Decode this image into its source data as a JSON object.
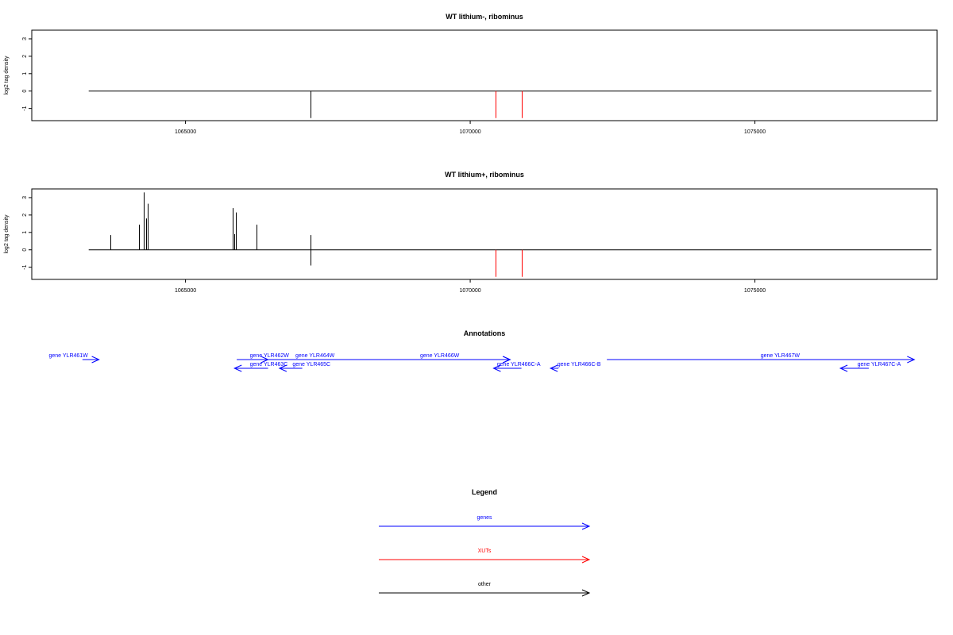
{
  "chart_data": [
    {
      "type": "bar",
      "title": "WT lithium-, ribominus",
      "ylabel": "log2 tag density",
      "xlim": [
        1062300,
        1078200
      ],
      "ylim": [
        -1.7,
        3.5
      ],
      "x_ticks": [
        "1065000",
        "1070000",
        "1075000"
      ],
      "y_ticks": [
        "-1",
        "0",
        "1",
        "2",
        "3"
      ],
      "baseline": {
        "x_start": 1063300,
        "x_end": 1078100,
        "y": 0
      },
      "series": [
        {
          "color": "#000000",
          "points": [
            {
              "x": 1067200,
              "y": -1.55
            }
          ]
        },
        {
          "color": "#ff0000",
          "points": [
            {
              "x": 1070450,
              "y": -1.55
            },
            {
              "x": 1070900,
              "y": -1.55
            }
          ]
        }
      ]
    },
    {
      "type": "bar",
      "title": "WT lithium+, ribominus",
      "ylabel": "log2 tag density",
      "xlim": [
        1062300,
        1078200
      ],
      "ylim": [
        -1.7,
        3.5
      ],
      "x_ticks": [
        "1065000",
        "1070000",
        "1075000"
      ],
      "y_ticks": [
        "-1",
        "0",
        "1",
        "2",
        "3"
      ],
      "baseline": {
        "x_start": 1063300,
        "x_end": 1078100,
        "y": 0
      },
      "series": [
        {
          "color": "#000000",
          "points": [
            {
              "x": 1063680,
              "y": 0.85
            },
            {
              "x": 1064180,
              "y": 1.45
            },
            {
              "x": 1064260,
              "y": 3.3
            },
            {
              "x": 1064310,
              "y": 1.8
            },
            {
              "x": 1064340,
              "y": 2.65
            },
            {
              "x": 1065830,
              "y": 2.4
            },
            {
              "x": 1065850,
              "y": 0.9
            },
            {
              "x": 1065880,
              "y": 2.15
            },
            {
              "x": 1066250,
              "y": 1.45
            },
            {
              "x": 1067200,
              "y": 0.85
            },
            {
              "x": 1067200,
              "y": -0.9
            }
          ]
        },
        {
          "color": "#ff0000",
          "points": [
            {
              "x": 1070450,
              "y": -1.55
            },
            {
              "x": 1070900,
              "y": -1.55
            }
          ]
        }
      ]
    }
  ],
  "annotations": {
    "title": "Annotations",
    "genes": [
      {
        "label": "gene YLR461W",
        "start": 1063190,
        "end": 1063480,
        "row": 0,
        "label_x": 1062600,
        "label_row": 0,
        "color": "#0000ff"
      },
      {
        "label": "gene YLR462W",
        "start": 1065900,
        "end": 1066450,
        "row": 0,
        "label_x": 1066130,
        "label_row": 0,
        "color": "#0000ff"
      },
      {
        "label": "gene YLR464W",
        "start": 1066450,
        "end": 1070700,
        "row": 0,
        "label_x": 1066930,
        "label_row": 0,
        "color": "#0000ff"
      },
      {
        "label": "gene YLR466W",
        "start": 1069500,
        "end": 1070700,
        "row": 0,
        "label_x": 1069120,
        "label_row": 0,
        "color": "#0000ff"
      },
      {
        "label": "gene YLR467W",
        "start": 1072400,
        "end": 1077800,
        "row": 0,
        "label_x": 1075100,
        "label_row": 0,
        "color": "#0000ff"
      },
      {
        "label": "gene YLR463C",
        "start": 1066450,
        "end": 1065860,
        "row": 1,
        "label_x": 1066130,
        "label_row": 1,
        "color": "#0000ff"
      },
      {
        "label": "gene YLR465C",
        "start": 1067050,
        "end": 1066650,
        "row": 1,
        "label_x": 1066880,
        "label_row": 1,
        "color": "#0000ff"
      },
      {
        "label": "gene YLR466C-A",
        "start": 1070900,
        "end": 1070410,
        "row": 1,
        "label_x": 1070470,
        "label_row": 1,
        "color": "#0000ff"
      },
      {
        "label": "gene YLR466C-B",
        "start": 1071550,
        "end": 1071410,
        "row": 1,
        "label_x": 1071530,
        "label_row": 1,
        "color": "#0000ff"
      },
      {
        "label": "gene YLR467C-A",
        "start": 1077000,
        "end": 1076500,
        "row": 1,
        "label_x": 1076800,
        "label_row": 1,
        "color": "#0000ff"
      }
    ]
  },
  "legend": {
    "title": "Legend",
    "items": [
      {
        "label": "genes",
        "color": "#0000ff"
      },
      {
        "label": "XUTs",
        "color": "#ff0000"
      },
      {
        "label": "other",
        "color": "#000000"
      }
    ]
  }
}
